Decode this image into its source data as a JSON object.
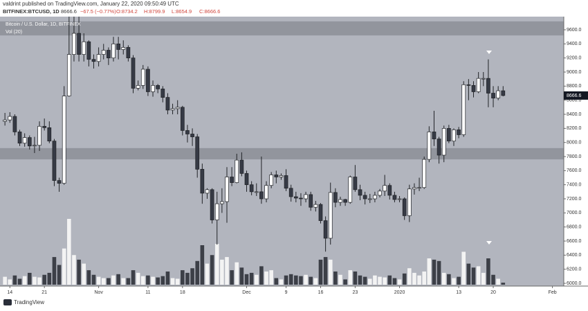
{
  "header": {
    "publisher": "valdrint published on TradingView.com, January 22, 2020 09:50:49 UTC",
    "symbol": "BITFINEX:BTCUSD, 1D",
    "price": "8666.6",
    "change": "−67.5 (−0.77%)",
    "ohlc": [
      "O:8734.2",
      "H:8799.9",
      "L:8654.9",
      "C:8666.6"
    ]
  },
  "chart_data": {
    "type": "candlestick",
    "title": "Bitcoin / U.S. Dollar, 1D, BITFINEX",
    "volume_label": "Vol (20)",
    "open": [
      8300,
      8320,
      8370,
      8150,
      7990,
      8070,
      7950,
      7960,
      8230,
      8210,
      8020,
      7460,
      7420,
      8660,
      9250,
      9550,
      9250,
      9430,
      9180,
      9150,
      9250,
      9310,
      9200,
      9400,
      9320,
      9350,
      9200,
      8770,
      8810,
      9040,
      8720,
      8810,
      8760,
      8640,
      8460,
      8480,
      8500,
      8170,
      8120,
      8080,
      7620,
      7280,
      7330,
      6900,
      7130,
      7160,
      7510,
      7430,
      7750,
      7560,
      7400,
      7300,
      7300,
      7200,
      7390,
      7540,
      7510,
      7530,
      7350,
      7230,
      7210,
      7200,
      7260,
      7080,
      7120,
      6890,
      6640,
      7290,
      7150,
      7190,
      7150,
      7510,
      7330,
      7250,
      7200,
      7200,
      7250,
      7310,
      7390,
      7250,
      7190,
      7200,
      6960,
      7340,
      7360,
      7360,
      7760,
      8150,
      8050,
      7820,
      8200,
      8020,
      8180,
      8110,
      8820,
      8810,
      8720,
      8910,
      8910,
      8700,
      8630,
      8734.2
    ],
    "high": [
      8420,
      8430,
      8400,
      8180,
      8130,
      8100,
      8080,
      8300,
      8340,
      8300,
      8050,
      7500,
      8800,
      10200,
      9800,
      9800,
      9550,
      9450,
      9250,
      9350,
      9400,
      9350,
      9500,
      9500,
      9450,
      9380,
      9240,
      8880,
      9100,
      9080,
      8880,
      8830,
      8800,
      8700,
      8550,
      8600,
      8520,
      8250,
      8200,
      8120,
      7700,
      7350,
      7350,
      7300,
      7350,
      7650,
      7650,
      7840,
      7860,
      7600,
      7450,
      7420,
      7800,
      7450,
      7580,
      7600,
      7560,
      7620,
      7400,
      7300,
      7280,
      7300,
      7300,
      7170,
      7140,
      6950,
      7430,
      7350,
      7230,
      7200,
      7530,
      7680,
      7400,
      7300,
      7270,
      7300,
      7340,
      7540,
      7420,
      7300,
      7240,
      7220,
      7400,
      7420,
      7500,
      7800,
      8230,
      8450,
      8080,
      8240,
      8250,
      8200,
      8220,
      8870,
      8900,
      8870,
      9000,
      9000,
      9180,
      8800,
      8800,
      8799.9
    ],
    "low": [
      8240,
      8280,
      8100,
      7950,
      7940,
      7900,
      7850,
      7880,
      8170,
      7990,
      7380,
      7300,
      7400,
      8650,
      9150,
      9150,
      9150,
      9080,
      9050,
      9080,
      9180,
      9100,
      9150,
      9180,
      9250,
      9150,
      8700,
      8740,
      8760,
      8660,
      8650,
      8700,
      8570,
      8400,
      8400,
      8400,
      8100,
      8000,
      7950,
      7500,
      7130,
      7200,
      6850,
      6550,
      7000,
      6860,
      7380,
      7420,
      7520,
      7300,
      7250,
      7240,
      7130,
      7150,
      7350,
      7420,
      7470,
      7310,
      7160,
      7150,
      7100,
      7150,
      7030,
      7020,
      6850,
      6450,
      6550,
      7080,
      7100,
      7100,
      7130,
      7300,
      7180,
      7120,
      7140,
      7150,
      7220,
      7240,
      7190,
      7150,
      7150,
      6900,
      6870,
      7260,
      7310,
      7340,
      7720,
      7950,
      7700,
      7720,
      7990,
      7950,
      8060,
      8080,
      8600,
      8640,
      8700,
      8800,
      8500,
      8500,
      8600,
      8654.9
    ],
    "close": [
      8320,
      8370,
      8150,
      7990,
      8070,
      7950,
      7960,
      8230,
      8210,
      8020,
      7460,
      7420,
      8660,
      9250,
      9550,
      9250,
      9430,
      9180,
      9150,
      9250,
      9310,
      9200,
      9400,
      9320,
      9350,
      9200,
      8770,
      8810,
      9040,
      8720,
      8810,
      8760,
      8640,
      8460,
      8480,
      8500,
      8170,
      8120,
      8080,
      7620,
      7280,
      7330,
      6900,
      7130,
      7160,
      7510,
      7430,
      7750,
      7560,
      7400,
      7300,
      7300,
      7200,
      7390,
      7540,
      7510,
      7530,
      7350,
      7230,
      7210,
      7200,
      7260,
      7080,
      7120,
      6890,
      6640,
      7290,
      7150,
      7190,
      7150,
      7510,
      7330,
      7250,
      7200,
      7200,
      7250,
      7310,
      7390,
      7250,
      7190,
      7200,
      6960,
      7340,
      7360,
      7360,
      7760,
      8150,
      8050,
      7820,
      8200,
      8020,
      8180,
      8110,
      8820,
      8810,
      8720,
      8910,
      8910,
      8700,
      8630,
      8734.2,
      8666.6
    ],
    "volume": [
      12,
      8,
      14,
      9,
      13,
      18,
      12,
      11,
      15,
      18,
      42,
      30,
      55,
      100,
      45,
      38,
      32,
      22,
      15,
      12,
      10,
      10,
      14,
      16,
      10,
      10,
      22,
      18,
      13,
      14,
      12,
      11,
      13,
      20,
      10,
      9,
      22,
      18,
      25,
      36,
      60,
      32,
      45,
      62,
      38,
      42,
      22,
      34,
      26,
      16,
      18,
      15,
      28,
      20,
      22,
      10,
      8,
      14,
      16,
      14,
      13,
      15,
      12,
      10,
      38,
      42,
      38,
      20,
      15,
      8,
      22,
      20,
      14,
      12,
      9,
      14,
      12,
      11,
      14,
      10,
      8,
      17,
      25,
      18,
      14,
      20,
      40,
      38,
      36,
      18,
      16,
      10,
      12,
      50,
      32,
      26,
      28,
      18,
      40,
      15,
      9,
      3
    ],
    "xlim": [
      -1,
      113.3
    ],
    "xticks": [
      {
        "value": 1,
        "label": "14"
      },
      {
        "value": 8,
        "label": "21"
      },
      {
        "value": 19,
        "label": "Nov"
      },
      {
        "value": 29,
        "label": "11"
      },
      {
        "value": 36,
        "label": "18"
      },
      {
        "value": 49,
        "label": "Dec"
      },
      {
        "value": 57,
        "label": "9"
      },
      {
        "value": 64,
        "label": "16"
      },
      {
        "value": 71,
        "label": "23"
      },
      {
        "value": 80,
        "label": "2020"
      },
      {
        "value": 92,
        "label": "13"
      },
      {
        "value": 99,
        "label": "20"
      },
      {
        "value": 111,
        "label": "Feb"
      }
    ],
    "ylim": [
      5961,
      9787
    ],
    "yticks": [
      {
        "value": 6000,
        "label": "6000.0"
      },
      {
        "value": 6200,
        "label": "6200.0"
      },
      {
        "value": 6400,
        "label": "6400.0"
      },
      {
        "value": 6600,
        "label": "6600.0"
      },
      {
        "value": 6800,
        "label": "6800.0"
      },
      {
        "value": 7000,
        "label": "7000.0"
      },
      {
        "value": 7200,
        "label": "7200.0"
      },
      {
        "value": 7400,
        "label": "7400.0"
      },
      {
        "value": 7600,
        "label": "7600.0"
      },
      {
        "value": 7800,
        "label": "7800.0"
      },
      {
        "value": 8000,
        "label": "8000.0"
      },
      {
        "value": 8200,
        "label": "8200.0"
      },
      {
        "value": 8400,
        "label": "8400.0"
      },
      {
        "value": 8600,
        "label": "8600.0"
      },
      {
        "value": 8800,
        "label": "8800.0"
      },
      {
        "value": 9000,
        "label": "9000.0"
      },
      {
        "value": 9200,
        "label": "9200.0"
      },
      {
        "value": 9400,
        "label": "9400.0"
      },
      {
        "value": 9600,
        "label": "9600.0"
      }
    ],
    "vlim": [
      0,
      100
    ],
    "zones": [
      [
        9520,
        9720
      ],
      [
        7760,
        7920
      ]
    ],
    "up_color": "#ffffff",
    "down_color": "#363a45",
    "background": "#b2b5be",
    "zone_color": "#8c8f98"
  }
}
